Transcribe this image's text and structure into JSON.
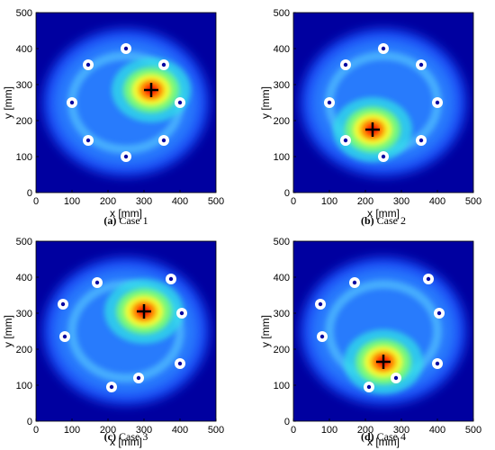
{
  "chart_data": [
    {
      "type": "heatmap",
      "caption_letter": "(a)",
      "caption_text": "Case 1",
      "xlabel": "x [mm]",
      "ylabel": "y [mm]",
      "xlim": [
        0,
        500
      ],
      "ylim": [
        0,
        500
      ],
      "xticks": [
        0,
        100,
        200,
        300,
        400,
        500
      ],
      "yticks": [
        0,
        100,
        200,
        300,
        400,
        500
      ],
      "sensors": [
        [
          250,
          400
        ],
        [
          145,
          355
        ],
        [
          355,
          355
        ],
        [
          100,
          250
        ],
        [
          400,
          250
        ],
        [
          145,
          145
        ],
        [
          355,
          145
        ],
        [
          250,
          100
        ]
      ],
      "source": [
        320,
        285
      ]
    },
    {
      "type": "heatmap",
      "caption_letter": "(b)",
      "caption_text": "Case 2",
      "xlabel": "x [mm]",
      "ylabel": "y [mm]",
      "xlim": [
        0,
        500
      ],
      "ylim": [
        0,
        500
      ],
      "xticks": [
        0,
        100,
        200,
        300,
        400,
        500
      ],
      "yticks": [
        0,
        100,
        200,
        300,
        400,
        500
      ],
      "sensors": [
        [
          250,
          400
        ],
        [
          145,
          355
        ],
        [
          355,
          355
        ],
        [
          100,
          250
        ],
        [
          400,
          250
        ],
        [
          145,
          145
        ],
        [
          355,
          145
        ],
        [
          250,
          100
        ]
      ],
      "source": [
        220,
        175
      ]
    },
    {
      "type": "heatmap",
      "caption_letter": "(c)",
      "caption_text": "Case 3",
      "xlabel": "x [mm]",
      "ylabel": "y [mm]",
      "xlim": [
        0,
        500
      ],
      "ylim": [
        0,
        500
      ],
      "xticks": [
        0,
        100,
        200,
        300,
        400,
        500
      ],
      "yticks": [
        0,
        100,
        200,
        300,
        400,
        500
      ],
      "sensors": [
        [
          170,
          385
        ],
        [
          375,
          395
        ],
        [
          75,
          325
        ],
        [
          405,
          300
        ],
        [
          80,
          235
        ],
        [
          400,
          160
        ],
        [
          285,
          120
        ],
        [
          210,
          95
        ]
      ],
      "source": [
        300,
        305
      ]
    },
    {
      "type": "heatmap",
      "caption_letter": "(d)",
      "caption_text": "Case 4",
      "xlabel": "x [mm]",
      "ylabel": "y [mm]",
      "xlim": [
        0,
        500
      ],
      "ylim": [
        0,
        500
      ],
      "xticks": [
        0,
        100,
        200,
        300,
        400,
        500
      ],
      "yticks": [
        0,
        100,
        200,
        300,
        400,
        500
      ],
      "sensors": [
        [
          170,
          385
        ],
        [
          375,
          395
        ],
        [
          75,
          325
        ],
        [
          405,
          300
        ],
        [
          80,
          235
        ],
        [
          400,
          160
        ],
        [
          285,
          120
        ],
        [
          210,
          95
        ]
      ],
      "source": [
        250,
        165
      ]
    }
  ],
  "colors": {
    "background": "#0000a0",
    "sensor_ring": "#ffffff",
    "source_marker": "#000000"
  }
}
